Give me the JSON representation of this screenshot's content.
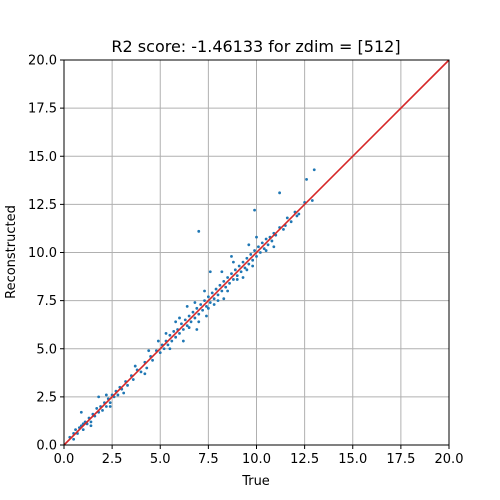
{
  "chart_data": {
    "type": "scatter",
    "title": "R2 score: -1.46133 for zdim = [512]",
    "xlabel": "True",
    "ylabel": "Reconstructed",
    "xlim": [
      0,
      20
    ],
    "ylim": [
      0,
      20
    ],
    "x_ticks": [
      "0.0",
      "2.5",
      "5.0",
      "7.5",
      "10.0",
      "12.5",
      "15.0",
      "17.5",
      "20.0"
    ],
    "y_ticks": [
      "0.0",
      "2.5",
      "5.0",
      "7.5",
      "10.0",
      "12.5",
      "15.0",
      "17.5",
      "20.0"
    ],
    "grid": true,
    "legend": "none",
    "colors": {
      "points": "#1f77b4",
      "reference_line": "#d62728",
      "grid": "#b0b0b0"
    },
    "reference_line": {
      "x": [
        0,
        20
      ],
      "y": [
        0,
        20
      ]
    },
    "series": [
      {
        "points": [
          [
            0.3,
            0.4
          ],
          [
            0.5,
            0.6
          ],
          [
            0.6,
            0.8
          ],
          [
            0.7,
            0.6
          ],
          [
            0.8,
            0.9
          ],
          [
            0.9,
            1.0
          ],
          [
            1.0,
            1.1
          ],
          [
            1.0,
            0.8
          ],
          [
            1.1,
            1.2
          ],
          [
            1.2,
            1.1
          ],
          [
            1.3,
            1.4
          ],
          [
            1.4,
            1.2
          ],
          [
            1.5,
            1.6
          ],
          [
            1.6,
            1.5
          ],
          [
            1.7,
            1.9
          ],
          [
            1.8,
            1.7
          ],
          [
            1.9,
            2.0
          ],
          [
            2.0,
            1.8
          ],
          [
            2.1,
            2.2
          ],
          [
            2.2,
            2.0
          ],
          [
            2.3,
            2.4
          ],
          [
            2.4,
            2.2
          ],
          [
            2.5,
            2.6
          ],
          [
            2.6,
            2.5
          ],
          [
            2.7,
            2.8
          ],
          [
            2.8,
            2.6
          ],
          [
            0.9,
            1.7
          ],
          [
            1.8,
            2.5
          ],
          [
            2.2,
            2.6
          ],
          [
            2.9,
            3.0
          ],
          [
            3.0,
            2.9
          ],
          [
            3.2,
            3.3
          ],
          [
            3.3,
            3.1
          ],
          [
            3.5,
            3.6
          ],
          [
            3.6,
            3.4
          ],
          [
            3.8,
            3.9
          ],
          [
            4.0,
            3.8
          ],
          [
            4.2,
            4.3
          ],
          [
            4.3,
            4.0
          ],
          [
            4.5,
            4.6
          ],
          [
            4.6,
            4.4
          ],
          [
            4.8,
            4.9
          ],
          [
            5.0,
            4.8
          ],
          [
            5.1,
            5.2
          ],
          [
            5.2,
            5.0
          ],
          [
            5.3,
            5.4
          ],
          [
            5.4,
            5.2
          ],
          [
            5.5,
            5.7
          ],
          [
            5.6,
            5.4
          ],
          [
            5.7,
            5.9
          ],
          [
            5.8,
            5.6
          ],
          [
            5.9,
            6.0
          ],
          [
            6.0,
            5.8
          ],
          [
            6.1,
            6.3
          ],
          [
            6.2,
            6.0
          ],
          [
            6.3,
            6.5
          ],
          [
            6.4,
            6.2
          ],
          [
            6.5,
            6.7
          ],
          [
            6.6,
            6.4
          ],
          [
            6.7,
            6.9
          ],
          [
            6.8,
            6.6
          ],
          [
            6.9,
            7.1
          ],
          [
            7.0,
            6.8
          ],
          [
            7.1,
            7.3
          ],
          [
            7.2,
            7.0
          ],
          [
            7.3,
            7.5
          ],
          [
            7.4,
            7.2
          ],
          [
            7.5,
            7.7
          ],
          [
            7.6,
            7.4
          ],
          [
            7.7,
            7.9
          ],
          [
            7.8,
            7.6
          ],
          [
            7.9,
            8.1
          ],
          [
            8.0,
            7.8
          ],
          [
            8.1,
            8.3
          ],
          [
            8.2,
            8.0
          ],
          [
            8.3,
            8.5
          ],
          [
            8.4,
            8.2
          ],
          [
            8.5,
            8.7
          ],
          [
            8.6,
            8.4
          ],
          [
            8.7,
            8.9
          ],
          [
            8.8,
            8.6
          ],
          [
            8.9,
            9.1
          ],
          [
            9.0,
            8.8
          ],
          [
            9.1,
            9.3
          ],
          [
            9.2,
            9.0
          ],
          [
            9.3,
            9.5
          ],
          [
            9.4,
            9.2
          ],
          [
            9.5,
            9.7
          ],
          [
            9.6,
            9.4
          ],
          [
            9.7,
            9.9
          ],
          [
            9.8,
            9.6
          ],
          [
            9.9,
            10.1
          ],
          [
            10.0,
            9.8
          ],
          [
            10.1,
            10.3
          ],
          [
            10.2,
            10.0
          ],
          [
            10.3,
            10.5
          ],
          [
            10.4,
            10.2
          ],
          [
            10.5,
            10.7
          ],
          [
            10.6,
            10.4
          ],
          [
            10.7,
            10.8
          ],
          [
            10.8,
            10.6
          ],
          [
            10.9,
            11.0
          ],
          [
            11.0,
            10.9
          ],
          [
            11.2,
            11.3
          ],
          [
            11.4,
            11.2
          ],
          [
            11.6,
            11.8
          ],
          [
            11.8,
            11.6
          ],
          [
            12.0,
            12.1
          ],
          [
            12.2,
            12.0
          ],
          [
            12.5,
            12.6
          ],
          [
            6.5,
            6.1
          ],
          [
            7.0,
            6.4
          ],
          [
            7.5,
            7.1
          ],
          [
            8.0,
            7.5
          ],
          [
            8.5,
            8.0
          ],
          [
            9.0,
            8.6
          ],
          [
            9.5,
            9.1
          ],
          [
            6.0,
            6.6
          ],
          [
            6.8,
            7.4
          ],
          [
            7.3,
            8.0
          ],
          [
            8.2,
            9.0
          ],
          [
            9.6,
            10.4
          ],
          [
            5.5,
            5.0
          ],
          [
            4.2,
            3.7
          ],
          [
            3.1,
            2.7
          ],
          [
            2.4,
            2.0
          ],
          [
            7.0,
            11.1
          ],
          [
            9.9,
            12.2
          ],
          [
            11.2,
            13.1
          ],
          [
            12.6,
            13.8
          ],
          [
            13.0,
            14.3
          ],
          [
            12.9,
            12.7
          ],
          [
            10.0,
            10.8
          ],
          [
            7.6,
            9.0
          ],
          [
            8.7,
            9.8
          ],
          [
            6.2,
            5.4
          ],
          [
            7.8,
            7.3
          ],
          [
            9.3,
            8.7
          ],
          [
            10.5,
            10.1
          ],
          [
            5.8,
            6.4
          ],
          [
            4.9,
            5.4
          ],
          [
            3.7,
            4.1
          ],
          [
            1.4,
            1.0
          ],
          [
            0.5,
            0.3
          ],
          [
            6.9,
            6.0
          ],
          [
            8.3,
            7.6
          ],
          [
            9.8,
            9.3
          ],
          [
            10.9,
            10.3
          ],
          [
            11.5,
            11.4
          ],
          [
            12.1,
            11.9
          ],
          [
            6.4,
            7.2
          ],
          [
            8.8,
            9.5
          ],
          [
            7.4,
            6.7
          ],
          [
            5.3,
            5.8
          ],
          [
            4.4,
            4.9
          ]
        ]
      }
    ]
  }
}
